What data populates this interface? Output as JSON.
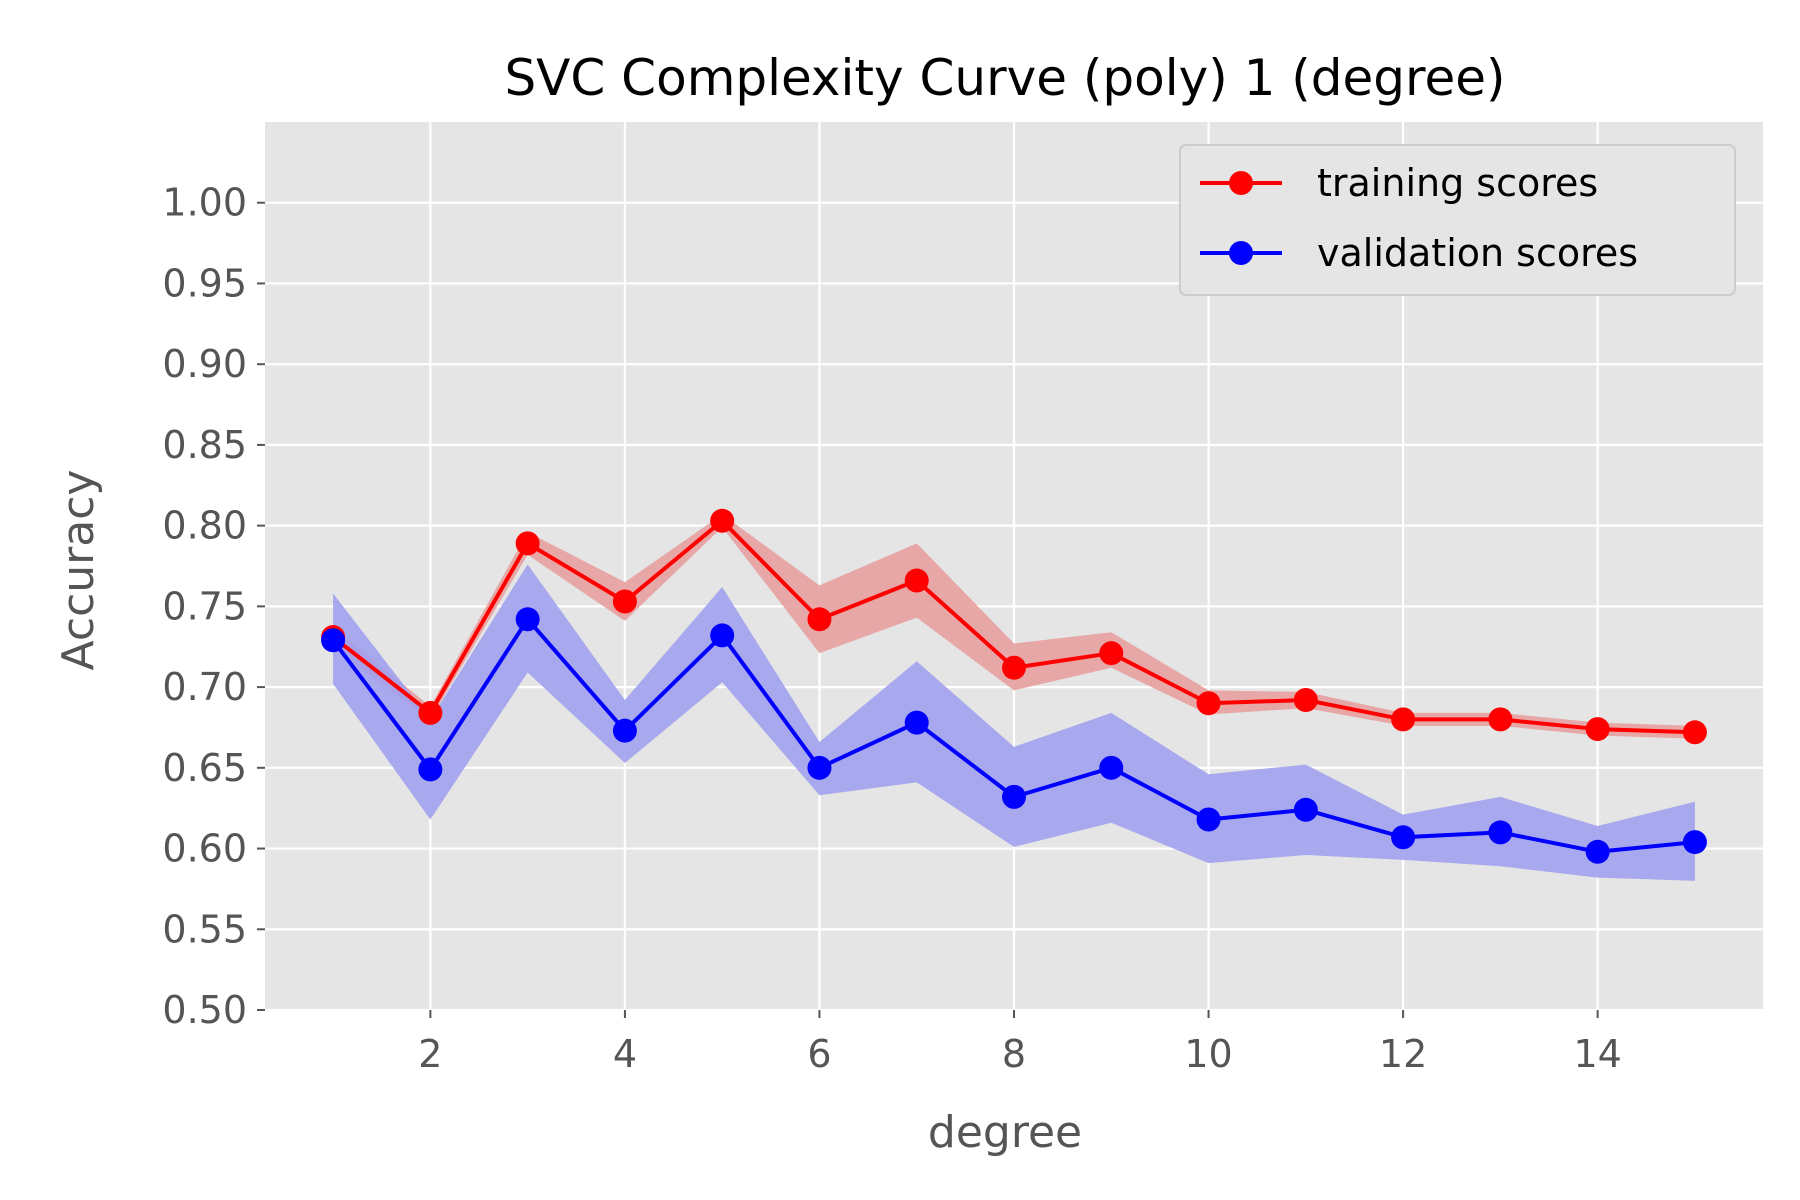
{
  "chart_data": {
    "type": "line",
    "title": "SVC Complexity Curve (poly) 1 (degree)",
    "xlabel": "degree",
    "ylabel": "Accuracy",
    "xlim": [
      0.3,
      15.7
    ],
    "ylim": [
      0.5,
      1.05
    ],
    "xticks": [
      2,
      4,
      6,
      8,
      10,
      12,
      14
    ],
    "yticks": [
      0.5,
      0.55,
      0.6,
      0.65,
      0.7,
      0.75,
      0.8,
      0.85,
      0.9,
      0.95,
      1.0
    ],
    "ytick_labels": [
      "0.50",
      "0.55",
      "0.60",
      "0.65",
      "0.70",
      "0.75",
      "0.80",
      "0.85",
      "0.90",
      "0.95",
      "1.00"
    ],
    "grid": true,
    "legend_position": "top-right",
    "x": [
      1,
      2,
      3,
      4,
      5,
      6,
      7,
      8,
      9,
      10,
      11,
      12,
      13,
      14,
      15
    ],
    "series": [
      {
        "name": "training scores",
        "color": "#ff0000",
        "band_color": "#e8a0a0",
        "values": [
          0.731,
          0.684,
          0.789,
          0.753,
          0.803,
          0.742,
          0.766,
          0.712,
          0.721,
          0.69,
          0.692,
          0.68,
          0.68,
          0.674,
          0.672
        ],
        "band_lower": [
          0.724,
          0.68,
          0.782,
          0.741,
          0.799,
          0.721,
          0.743,
          0.698,
          0.712,
          0.683,
          0.687,
          0.676,
          0.676,
          0.67,
          0.668
        ],
        "band_upper": [
          0.737,
          0.688,
          0.796,
          0.765,
          0.807,
          0.763,
          0.789,
          0.727,
          0.734,
          0.698,
          0.697,
          0.684,
          0.684,
          0.678,
          0.676
        ]
      },
      {
        "name": "validation scores",
        "color": "#0000ff",
        "band_color": "#a1a1ee",
        "values": [
          0.729,
          0.649,
          0.742,
          0.673,
          0.732,
          0.65,
          0.678,
          0.632,
          0.65,
          0.618,
          0.624,
          0.607,
          0.61,
          0.598,
          0.604
        ],
        "band_lower": [
          0.702,
          0.618,
          0.709,
          0.653,
          0.703,
          0.633,
          0.641,
          0.601,
          0.616,
          0.591,
          0.596,
          0.593,
          0.589,
          0.582,
          0.58
        ],
        "band_upper": [
          0.758,
          0.68,
          0.776,
          0.692,
          0.762,
          0.666,
          0.716,
          0.663,
          0.684,
          0.646,
          0.652,
          0.621,
          0.632,
          0.614,
          0.629
        ]
      }
    ]
  }
}
